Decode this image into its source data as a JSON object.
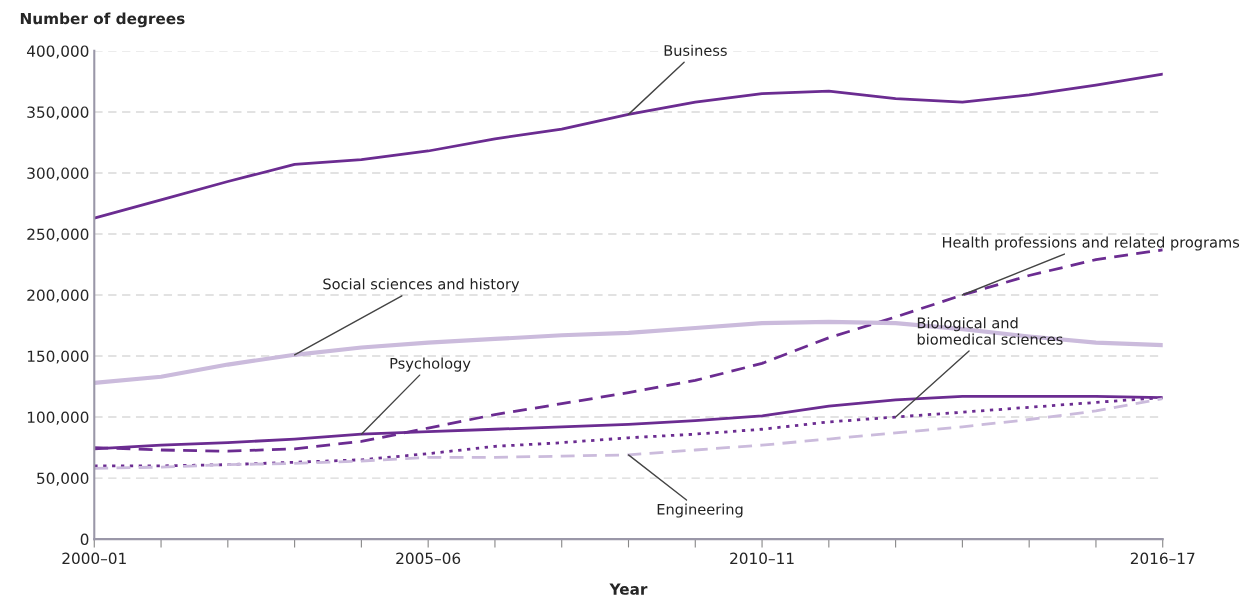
{
  "chart_data": {
    "type": "line",
    "ylabel": "Number of degrees",
    "xlabel": "Year",
    "categories": [
      "2000–01",
      null,
      null,
      null,
      null,
      "2005–06",
      null,
      null,
      null,
      null,
      "2010–11",
      null,
      null,
      null,
      null,
      null,
      "2016–17"
    ],
    "ylim": [
      0,
      400000
    ],
    "yticks": [
      {
        "value": 0,
        "label": "0"
      },
      {
        "value": 50000,
        "label": "50,000"
      },
      {
        "value": 100000,
        "label": "100,000"
      },
      {
        "value": 150000,
        "label": "150,000"
      },
      {
        "value": 200000,
        "label": "200,000"
      },
      {
        "value": 250000,
        "label": "250,000"
      },
      {
        "value": 300000,
        "label": "300,000"
      },
      {
        "value": 350000,
        "label": "350,000"
      },
      {
        "value": 400000,
        "label": "400,000"
      }
    ],
    "grid": "y",
    "legend": false,
    "series": [
      {
        "name": "Business",
        "color": "#6b2c91",
        "line_style": "solid",
        "values": [
          263000,
          278000,
          293000,
          307000,
          311000,
          318000,
          328000,
          336000,
          348000,
          358000,
          365000,
          367000,
          361000,
          358000,
          364000,
          372000,
          381000
        ]
      },
      {
        "name": "Health professions and related programs",
        "color": "#6b2c91",
        "line_style": "dashed",
        "values": [
          75000,
          73000,
          72000,
          74000,
          80000,
          91000,
          102000,
          111000,
          120000,
          130000,
          144000,
          165000,
          182000,
          200000,
          216000,
          229000,
          237000
        ]
      },
      {
        "name": "Social sciences and history",
        "color": "#cbbbdc",
        "line_style": "solid",
        "values": [
          128000,
          133000,
          143000,
          151000,
          157000,
          161000,
          164000,
          167000,
          169000,
          173000,
          177000,
          178000,
          177000,
          172000,
          166000,
          161000,
          159000
        ]
      },
      {
        "name": "Psychology",
        "color": "#6b2c91",
        "line_style": "solid",
        "values": [
          74000,
          77000,
          79000,
          82000,
          86000,
          88000,
          90000,
          92000,
          94000,
          97000,
          101000,
          109000,
          114000,
          117000,
          117000,
          117000,
          116000
        ]
      },
      {
        "name": "Biological and\nbiomedical sciences",
        "color": "#6b2c91",
        "line_style": "dotted",
        "values": [
          60000,
          60000,
          61000,
          63000,
          65000,
          70000,
          76000,
          79000,
          83000,
          86000,
          90000,
          96000,
          100000,
          104000,
          108000,
          112000,
          116000
        ]
      },
      {
        "name": "Engineering",
        "color": "#cbbbdc",
        "line_style": "dashed",
        "values": [
          58000,
          59000,
          61000,
          62000,
          64000,
          67000,
          67000,
          68000,
          69000,
          73000,
          77000,
          82000,
          87000,
          92000,
          98000,
          105000,
          115000
        ]
      }
    ]
  }
}
